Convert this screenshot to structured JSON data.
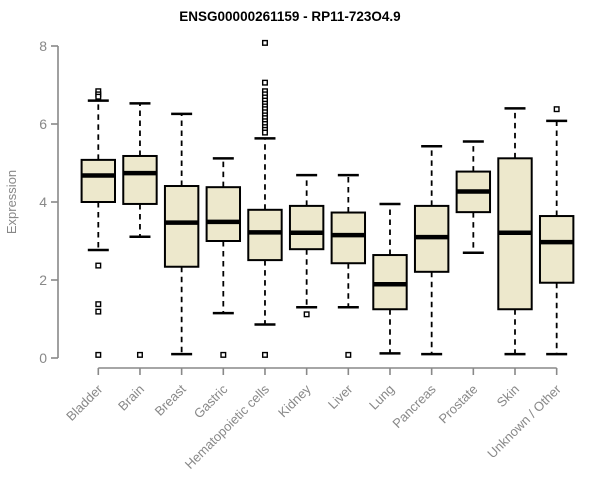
{
  "figure": {
    "title": "ENSG00000261159 - RP11-723O4.9",
    "ylabel": "Expression"
  },
  "chart_data": {
    "type": "boxplot",
    "title": "ENSG00000261159 - RP11-723O4.9",
    "xlabel": "",
    "ylabel": "Expression",
    "ylim": [
      0,
      8
    ],
    "yticks": [
      0,
      2,
      4,
      6,
      8
    ],
    "grid": false,
    "legend": "none",
    "box_fill": "#ede8cc",
    "box_stroke": "#000000",
    "whisker_style": "dashed",
    "axis_color": "#898989",
    "label_color": "#888888",
    "categories": [
      "Bladder",
      "Brain",
      "Breast",
      "Gastric",
      "Hematopoietic cells",
      "Kidney",
      "Liver",
      "Lung",
      "Pancreas",
      "Prostate",
      "Skin",
      "Unknown / Other"
    ],
    "series": [
      {
        "label": "Bladder",
        "whisker_low": 2.77,
        "q1": 4.0,
        "median": 4.68,
        "q3": 5.08,
        "whisker_high": 6.6,
        "outliers": [
          6.84,
          6.76,
          6.7,
          2.37,
          1.38,
          1.19,
          0.08
        ]
      },
      {
        "label": "Brain",
        "whisker_low": 3.11,
        "q1": 3.95,
        "median": 4.74,
        "q3": 5.18,
        "whisker_high": 6.53,
        "outliers": [
          0.08
        ]
      },
      {
        "label": "Breast",
        "whisker_low": 0.1,
        "q1": 2.34,
        "median": 3.47,
        "q3": 4.41,
        "whisker_high": 6.26,
        "outliers": []
      },
      {
        "label": "Gastric",
        "whisker_low": 1.15,
        "q1": 3.0,
        "median": 3.49,
        "q3": 4.38,
        "whisker_high": 5.12,
        "outliers": [
          0.08
        ]
      },
      {
        "label": "Hematopoietic cells",
        "whisker_low": 0.86,
        "q1": 2.51,
        "median": 3.22,
        "q3": 3.8,
        "whisker_high": 5.63,
        "outliers": [
          8.08,
          7.06,
          6.84,
          6.76,
          6.68,
          6.6,
          6.52,
          6.45,
          6.38,
          6.3,
          6.22,
          6.15,
          6.07,
          6.0,
          5.92,
          5.85,
          5.78,
          0.08
        ]
      },
      {
        "label": "Kidney",
        "whisker_low": 1.3,
        "q1": 2.79,
        "median": 3.21,
        "q3": 3.9,
        "whisker_high": 4.69,
        "outliers": [
          1.12
        ]
      },
      {
        "label": "Liver",
        "whisker_low": 1.3,
        "q1": 2.43,
        "median": 3.15,
        "q3": 3.73,
        "whisker_high": 4.69,
        "outliers": [
          0.08
        ]
      },
      {
        "label": "Lung",
        "whisker_low": 0.12,
        "q1": 1.25,
        "median": 1.89,
        "q3": 2.64,
        "whisker_high": 3.95,
        "outliers": []
      },
      {
        "label": "Pancreas",
        "whisker_low": 0.1,
        "q1": 2.21,
        "median": 3.1,
        "q3": 3.9,
        "whisker_high": 5.43,
        "outliers": []
      },
      {
        "label": "Prostate",
        "whisker_low": 2.7,
        "q1": 3.74,
        "median": 4.27,
        "q3": 4.78,
        "whisker_high": 5.55,
        "outliers": []
      },
      {
        "label": "Skin",
        "whisker_low": 0.1,
        "q1": 1.25,
        "median": 3.21,
        "q3": 5.12,
        "whisker_high": 6.4,
        "outliers": []
      },
      {
        "label": "Unknown / Other",
        "whisker_low": 0.1,
        "q1": 1.93,
        "median": 2.97,
        "q3": 3.64,
        "whisker_high": 6.08,
        "outliers": [
          6.38
        ]
      }
    ]
  }
}
